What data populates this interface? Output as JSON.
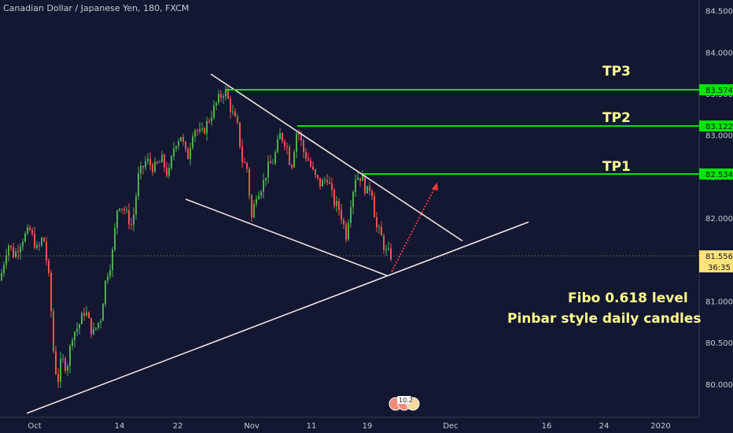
{
  "header": {
    "title": "Canadian Dollar / Japanese Yen, 180, FXCM"
  },
  "colors": {
    "background": "#131731",
    "candle_up": "#4caf50",
    "candle_down": "#ef5350",
    "tp_line": "#00e600",
    "trend_line": "#f2e6e6",
    "arrow": "#ff3b3b",
    "annotation_text": "#ffff8f",
    "current_price_tag": "#ffe27a"
  },
  "annotations": {
    "tp3": "TP3",
    "tp2": "TP2",
    "tp1": "TP1",
    "note_line1": "Fibo 0.618 level",
    "note_line2": "Pinbar style daily candles"
  },
  "price_tags": {
    "tp3": "83.574",
    "tp2": "83.122",
    "tp1": "82.534",
    "current": "81.556",
    "countdown": "36:35"
  },
  "events_badge": {
    "text": "10.2"
  },
  "chart_data": {
    "type": "candlestick",
    "title": "Canadian Dollar / Japanese Yen, 180, FXCM",
    "ylim": [
      79.6,
      84.63
    ],
    "y_ticks": [
      "84.500",
      "84.000",
      "83.500",
      "83.000",
      "82.500",
      "82.000",
      "81.500",
      "81.000",
      "80.500",
      "80.000"
    ],
    "x_ticks": [
      "Oct",
      "14",
      "22",
      "Nov",
      "11",
      "19",
      "Dec",
      "16",
      "24",
      "2020"
    ],
    "tp_levels": [
      {
        "label": "TP3",
        "value": 83.574
      },
      {
        "label": "TP2",
        "value": 83.122
      },
      {
        "label": "TP1",
        "value": 82.534
      }
    ],
    "current_price": 81.556,
    "path": [
      [
        0,
        81.25
      ],
      [
        10,
        81.7
      ],
      [
        18,
        81.55
      ],
      [
        28,
        81.75
      ],
      [
        38,
        81.85
      ],
      [
        48,
        81.6
      ],
      [
        55,
        81.8
      ],
      [
        63,
        81.2
      ],
      [
        68,
        80.4
      ],
      [
        73,
        80.0
      ],
      [
        78,
        80.3
      ],
      [
        85,
        80.2
      ],
      [
        92,
        80.6
      ],
      [
        100,
        80.7
      ],
      [
        108,
        80.9
      ],
      [
        118,
        80.6
      ],
      [
        128,
        80.8
      ],
      [
        135,
        81.3
      ],
      [
        142,
        81.5
      ],
      [
        150,
        82.2
      ],
      [
        158,
        82.1
      ],
      [
        168,
        81.9
      ],
      [
        176,
        82.5
      ],
      [
        186,
        82.7
      ],
      [
        196,
        82.6
      ],
      [
        206,
        82.7
      ],
      [
        214,
        82.5
      ],
      [
        222,
        82.9
      ],
      [
        230,
        83.0
      ],
      [
        238,
        82.7
      ],
      [
        246,
        83.1
      ],
      [
        256,
        83.0
      ],
      [
        266,
        83.2
      ],
      [
        276,
        83.4
      ],
      [
        286,
        83.55
      ],
      [
        294,
        83.3
      ],
      [
        302,
        83.1
      ],
      [
        308,
        82.7
      ],
      [
        314,
        82.6
      ],
      [
        320,
        82.0
      ],
      [
        326,
        82.3
      ],
      [
        334,
        82.4
      ],
      [
        340,
        82.6
      ],
      [
        348,
        82.7
      ],
      [
        356,
        83.0
      ],
      [
        364,
        82.9
      ],
      [
        370,
        82.6
      ],
      [
        378,
        83.1
      ],
      [
        386,
        82.8
      ],
      [
        392,
        82.7
      ],
      [
        400,
        82.5
      ],
      [
        408,
        82.4
      ],
      [
        416,
        82.5
      ],
      [
        424,
        82.2
      ],
      [
        432,
        82.1
      ],
      [
        440,
        81.8
      ],
      [
        446,
        82.2
      ],
      [
        452,
        82.5
      ],
      [
        460,
        82.5
      ],
      [
        466,
        82.3
      ],
      [
        472,
        82.4
      ],
      [
        478,
        81.9
      ],
      [
        484,
        81.8
      ],
      [
        490,
        81.6
      ],
      [
        497,
        81.55
      ]
    ]
  }
}
